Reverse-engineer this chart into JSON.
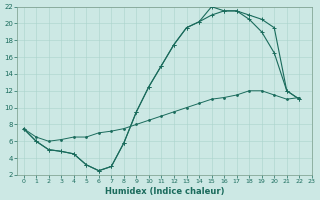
{
  "xlabel": "Humidex (Indice chaleur)",
  "xlim": [
    -0.5,
    23
  ],
  "ylim": [
    2,
    22
  ],
  "xticks": [
    0,
    1,
    2,
    3,
    4,
    5,
    6,
    7,
    8,
    9,
    10,
    11,
    12,
    13,
    14,
    15,
    16,
    17,
    18,
    19,
    20,
    21,
    22,
    23
  ],
  "yticks": [
    2,
    4,
    6,
    8,
    10,
    12,
    14,
    16,
    18,
    20,
    22
  ],
  "bg_color": "#cce8e4",
  "grid_color": "#aad4cc",
  "line_color": "#1a6b5c",
  "curve1_x": [
    0,
    1,
    2,
    3,
    4,
    5,
    6,
    7,
    8,
    9,
    10,
    11,
    12,
    13,
    14,
    15,
    16,
    17,
    18,
    19,
    20,
    21,
    22
  ],
  "curve1_y": [
    7.5,
    6.0,
    5.0,
    4.8,
    4.5,
    3.2,
    2.5,
    3.0,
    5.8,
    9.5,
    12.5,
    15.0,
    17.5,
    19.5,
    20.2,
    22.0,
    21.5,
    21.5,
    20.5,
    19.0,
    16.5,
    12.0,
    11.0
  ],
  "curve2_x": [
    0,
    1,
    2,
    3,
    4,
    5,
    6,
    7,
    8,
    9,
    10,
    11,
    12,
    13,
    14,
    15,
    16,
    17,
    18,
    19,
    20,
    21,
    22
  ],
  "curve2_y": [
    7.5,
    6.0,
    5.0,
    4.8,
    4.5,
    3.2,
    2.5,
    3.0,
    5.8,
    9.5,
    12.5,
    15.0,
    17.5,
    19.5,
    20.2,
    21.0,
    21.5,
    21.5,
    21.0,
    20.5,
    19.5,
    12.0,
    11.0
  ],
  "curve3_x": [
    0,
    1,
    2,
    3,
    4,
    5,
    6,
    7,
    8,
    9,
    10,
    11,
    12,
    13,
    14,
    15,
    16,
    17,
    18,
    19,
    20,
    21,
    22
  ],
  "curve3_y": [
    7.5,
    6.5,
    6.0,
    6.2,
    6.5,
    6.5,
    7.0,
    7.2,
    7.5,
    8.0,
    8.5,
    9.0,
    9.5,
    10.0,
    10.5,
    11.0,
    11.2,
    11.5,
    12.0,
    12.0,
    11.5,
    11.0,
    11.2
  ]
}
